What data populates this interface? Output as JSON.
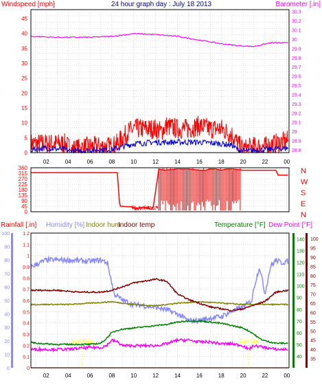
{
  "colors": {
    "background": "#ffffff",
    "grid": "#c0c0c0",
    "frame": "#000000",
    "title": "#000080",
    "wind": "#ff0000",
    "wind_avg": "#0000cc",
    "barometer": "#ff00ff",
    "direction": "#ff0000",
    "rain": "#ff0000",
    "humidity": "#8888ff",
    "indoor_hum": "#808000",
    "indoor_temp": "#800000",
    "temperature": "#008000",
    "dewpoint": "#ff00ff",
    "dew_axis": "#800000",
    "sun": "#ffff00"
  },
  "title": "24 hour graph day : July 18 2013",
  "time_ticks": [
    "02",
    "04",
    "06",
    "08",
    "10",
    "12",
    "14",
    "16",
    "18",
    "20",
    "22",
    "00"
  ],
  "chart_data": [
    {
      "type": "line",
      "title": "24 hour graph day : July 18 2013",
      "left_axis": {
        "label": "Windspeed [mph]",
        "ticks": [
          0,
          5,
          10,
          15,
          20,
          25,
          30,
          35,
          40,
          45
        ],
        "range": [
          0,
          48
        ]
      },
      "right_axis": {
        "label": "Barometer [.in]",
        "ticks": [
          "28.8",
          "28.9",
          "29",
          "29.1",
          "29.2",
          "29.3",
          "29.4",
          "29.5",
          "29.6",
          "29.7",
          "29.8",
          "29.9",
          "30",
          "30.1",
          "30.2",
          "30.3"
        ],
        "range": [
          28.77,
          30.32
        ]
      },
      "x_range": [
        0.6,
        24.2
      ],
      "series": [
        {
          "name": "wind_gust",
          "axis": "left",
          "x": [
            0.6,
            2,
            3.8,
            4.2,
            6,
            7,
            8,
            8.5,
            9,
            9.5,
            10,
            11,
            12,
            12.5,
            13,
            14,
            15,
            16,
            17,
            18,
            19,
            19.5,
            20,
            21,
            22,
            23,
            24.1
          ],
          "y": [
            3,
            3,
            3,
            1,
            2,
            2,
            2,
            3,
            5,
            7,
            8,
            8,
            8,
            7,
            9,
            8,
            8,
            9,
            8,
            8,
            6,
            3,
            1,
            2,
            2,
            3,
            4
          ]
        },
        {
          "name": "wind_avg",
          "axis": "left",
          "x": [
            0.6,
            2,
            3.8,
            4.2,
            6,
            7,
            8,
            9,
            10,
            12,
            14,
            16,
            18,
            19,
            19.5,
            20,
            22,
            24.1
          ],
          "y": [
            1,
            1.5,
            1,
            0.5,
            0.8,
            1,
            1,
            2,
            3,
            3.5,
            3.5,
            3.5,
            3,
            2.5,
            1,
            0.5,
            1,
            1.5
          ]
        },
        {
          "name": "barometer",
          "axis": "right",
          "x": [
            0.6,
            3,
            6,
            8,
            10,
            12,
            14,
            16,
            18,
            19.5,
            21,
            22.5,
            24.1
          ],
          "y": [
            30.03,
            30.02,
            30.02,
            30.03,
            30.06,
            30.05,
            30.03,
            29.99,
            29.95,
            29.93,
            29.92,
            29.96,
            29.96
          ]
        }
      ]
    },
    {
      "type": "line",
      "title": "",
      "left_axis": {
        "label": "",
        "ticks": [
          0,
          45,
          90,
          135,
          180,
          225,
          270,
          315,
          360
        ],
        "range": [
          0,
          360
        ]
      },
      "right_axis": {
        "label": "",
        "ticks": [
          "N",
          "W",
          "S",
          "E",
          "N"
        ]
      },
      "series": [
        {
          "name": "wind_direction",
          "axis": "left",
          "x": [
            0.6,
            8.5,
            8.7,
            8.8,
            9.8,
            10.2,
            11,
            11.6,
            11.8,
            12.3,
            12.8,
            14,
            15,
            16,
            16.6,
            17,
            17.5,
            18,
            18.5,
            19,
            20,
            21,
            22,
            23,
            23.2,
            24.1
          ],
          "y": [
            320,
            320,
            70,
            45,
            40,
            30,
            35,
            20,
            45,
            350,
            340,
            350,
            350,
            340,
            340,
            350,
            350,
            340,
            350,
            350,
            340,
            340,
            340,
            340,
            300,
            300
          ]
        }
      ]
    },
    {
      "type": "line",
      "title": "",
      "left_axes": [
        {
          "label": "Rainfall [.in]",
          "ticks": [
            "0",
            "0.1",
            "0.2",
            "0.3",
            "0.4",
            "0.5",
            "0.6",
            "0.7",
            "0.8",
            "0.9",
            "1",
            "1.1",
            "1.2"
          ],
          "range": [
            0,
            1.2
          ]
        },
        {
          "label": "Humidity [%]",
          "ticks": [
            0,
            10,
            20,
            30,
            40,
            50,
            60,
            70,
            80,
            90,
            100
          ],
          "range": [
            0,
            100
          ]
        }
      ],
      "right_axes": [
        {
          "label": "Temperature [°F]",
          "ticks": [
            40,
            50,
            60,
            70,
            80,
            90,
            100,
            110,
            120,
            130,
            140
          ],
          "range": [
            30,
            145
          ]
        },
        {
          "label": "Dew Point [°F]",
          "ticks": [
            35,
            40,
            45,
            50,
            55,
            60,
            65,
            70,
            75,
            80,
            85,
            90,
            95,
            100
          ],
          "range": [
            30,
            103
          ]
        }
      ],
      "legend": [
        "Rainfall [.in]",
        "Humidity [%]",
        "Indoor hum",
        "Indoor temp",
        "Temperature [°F]",
        "Dew Point [°F]"
      ],
      "annotations": [
        "Sun Rise",
        "Sun Set"
      ],
      "series": [
        {
          "name": "rainfall",
          "axis": "Rainfall [.in]",
          "x": [
            0.6,
            24.1
          ],
          "y": [
            0,
            0
          ]
        },
        {
          "name": "humidity",
          "axis": "Humidity [%]",
          "x": [
            0.6,
            2,
            4,
            6,
            7,
            7.6,
            8.2,
            9,
            10,
            12,
            13,
            14,
            15,
            16,
            17,
            18,
            19,
            20,
            20.8,
            21,
            21.5,
            22,
            22.5,
            23,
            23.5,
            24.1
          ],
          "y": [
            75,
            80,
            80,
            79,
            80,
            78,
            55,
            50,
            47,
            45,
            43,
            40,
            35,
            35,
            37,
            38,
            42,
            45,
            50,
            60,
            75,
            55,
            75,
            80,
            78,
            79
          ]
        },
        {
          "name": "indoor_hum",
          "axis": "Humidity [%]",
          "x": [
            0.6,
            4,
            6,
            8,
            10,
            12,
            14,
            16,
            18,
            20,
            22,
            24.1
          ],
          "y": [
            47,
            47,
            48,
            49,
            47,
            46,
            48,
            49,
            48,
            47,
            47,
            47
          ]
        },
        {
          "name": "indoor_temp",
          "axis": "Dew Point [°F]",
          "x": [
            0.6,
            3,
            5,
            7,
            8,
            9,
            10,
            11,
            12,
            13,
            14,
            15,
            16,
            17,
            18,
            19,
            20,
            21,
            22,
            23,
            24.1
          ],
          "y": [
            72,
            72,
            71,
            71,
            72,
            74,
            76,
            77,
            78,
            77,
            70,
            67,
            65,
            63,
            62,
            61,
            62,
            64,
            66,
            71,
            72
          ]
        },
        {
          "name": "temperature",
          "axis": "Temperature [°F]",
          "x": [
            0.6,
            1,
            3,
            5,
            6,
            7,
            7.5,
            8,
            8.5,
            9,
            10,
            11,
            12,
            13,
            14,
            15,
            16,
            17,
            18,
            19,
            20,
            20.8,
            21.5,
            22,
            22.5,
            23,
            24.1
          ],
          "y": [
            52,
            51,
            50,
            50,
            50,
            51,
            55,
            60,
            62,
            63,
            64,
            65,
            66,
            67,
            69,
            70,
            70,
            69,
            68,
            66,
            64,
            60,
            55,
            53,
            52,
            51,
            51
          ]
        },
        {
          "name": "dewpoint",
          "axis": "Dew Point [°F]",
          "x": [
            0.6,
            2,
            4,
            6,
            7,
            7.5,
            8,
            8.5,
            9,
            10,
            11,
            12,
            13,
            14,
            15,
            16,
            17,
            18,
            19,
            20,
            20.5,
            21,
            22,
            23,
            24.1
          ],
          "y": [
            40,
            40,
            40,
            41,
            41,
            42,
            45,
            44,
            42,
            42,
            42,
            42,
            43,
            45,
            45,
            44,
            44,
            43,
            43,
            42,
            40,
            42,
            41,
            40,
            40
          ]
        }
      ]
    }
  ]
}
